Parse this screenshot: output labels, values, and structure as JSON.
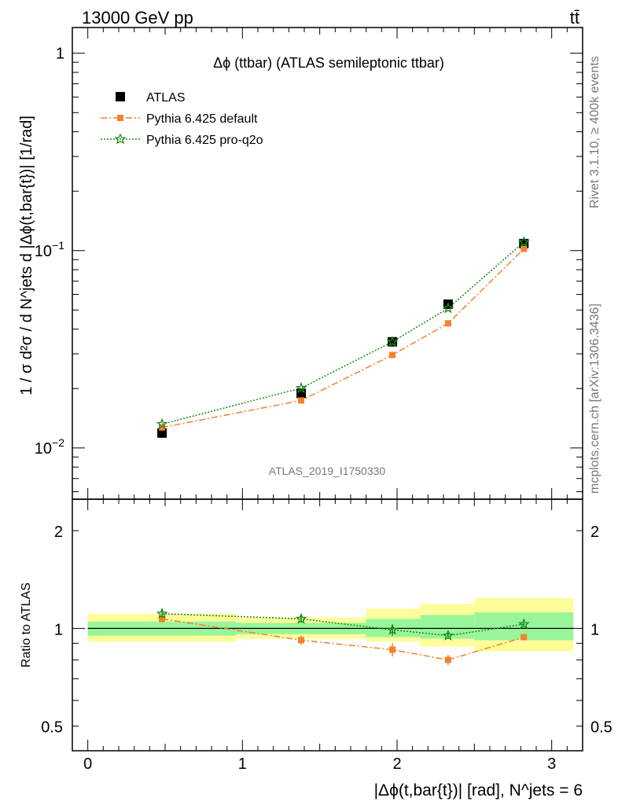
{
  "header": {
    "energy": "13000 GeV pp",
    "process": "tt̄"
  },
  "side": {
    "rivet": "Rivet 3.1.10, ≥ 400k events",
    "source": "mcplots.cern.ch [arXiv:1306.3436]"
  },
  "watermark": "ATLAS_2019_I1750330",
  "colors": {
    "atlas": "#000000",
    "default": "#f5812d",
    "proq2o": "#1a8a1a",
    "band_inner": "#99f599",
    "band_outer": "#fdfd99"
  },
  "chart_data": [
    {
      "type": "scatter",
      "title": "Δϕ (ttbar) (ATLAS semileptonic ttbar)",
      "ylabel": "1 / σ d²σ / d N^jets d |Δϕ(t,bar{t})| [1/rad]",
      "yscale": "log",
      "ylim": [
        0.0055,
        1.35
      ],
      "xlim": [
        -0.1,
        3.2
      ],
      "y_ticks": [
        "10^-2",
        "10^-1",
        "1"
      ],
      "legend_position": "top-left",
      "bins": [
        [
          0,
          0.96
        ],
        [
          0.96,
          1.8
        ],
        [
          1.8,
          2.15
        ],
        [
          2.15,
          2.5
        ],
        [
          2.5,
          3.14
        ]
      ],
      "x": [
        0.48,
        1.38,
        1.97,
        2.33,
        2.82
      ],
      "series": [
        {
          "name": "ATLAS",
          "values": [
            0.0119,
            0.0189,
            0.0345,
            0.0535,
            0.1085
          ]
        },
        {
          "name": "Pythia 6.425 default",
          "values": [
            0.0127,
            0.0174,
            0.0296,
            0.0428,
            0.102
          ]
        },
        {
          "name": "Pythia 6.425 pro-q2o",
          "values": [
            0.0132,
            0.0201,
            0.0345,
            0.051,
            0.1105
          ]
        }
      ]
    },
    {
      "type": "scatter",
      "ylabel": "Ratio to ATLAS",
      "xlabel": "|Δϕ(t,bar{t})| [rad], N^jets = 6",
      "yscale": "log",
      "ylim": [
        0.42,
        2.5
      ],
      "xlim": [
        -0.1,
        3.2
      ],
      "x_ticks": [
        "0",
        "1",
        "2",
        "3"
      ],
      "y_ticks": [
        "0.5",
        "1",
        "2"
      ],
      "bins": [
        [
          0,
          0.96
        ],
        [
          0.96,
          1.8
        ],
        [
          1.8,
          2.15
        ],
        [
          2.15,
          2.5
        ],
        [
          2.5,
          3.14
        ]
      ],
      "band_inner": [
        [
          0.95,
          1.05
        ],
        [
          0.96,
          1.04
        ],
        [
          0.94,
          1.07
        ],
        [
          0.93,
          1.1
        ],
        [
          0.92,
          1.12
        ]
      ],
      "band_outer": [
        [
          0.91,
          1.11
        ],
        [
          0.93,
          1.08
        ],
        [
          0.91,
          1.15
        ],
        [
          0.88,
          1.19
        ],
        [
          0.85,
          1.24
        ]
      ],
      "x": [
        0.48,
        1.38,
        1.97,
        2.33,
        2.82
      ],
      "series": [
        {
          "name": "Pythia 6.425 default",
          "values": [
            1.07,
            0.92,
            0.86,
            0.8,
            0.94
          ],
          "err": [
            0.03,
            0.03,
            0.04,
            0.03,
            0.01
          ]
        },
        {
          "name": "Pythia 6.425 pro-q2o",
          "values": [
            1.11,
            1.07,
            0.99,
            0.95,
            1.03
          ],
          "err": [
            0.03,
            0.03,
            0.04,
            0.02,
            0.01
          ]
        }
      ]
    }
  ]
}
